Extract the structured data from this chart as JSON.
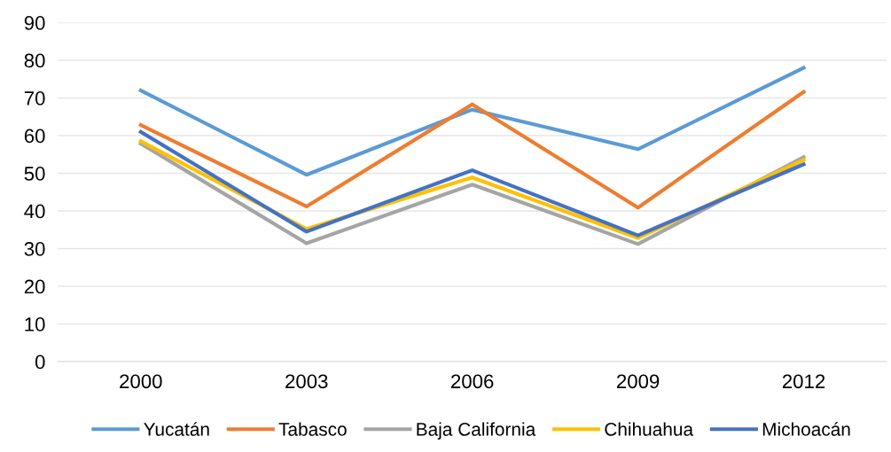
{
  "chart_data": {
    "type": "line",
    "categories": [
      "2000",
      "2003",
      "2006",
      "2009",
      "2012"
    ],
    "ylim": [
      0,
      90
    ],
    "yticks": [
      0,
      10,
      20,
      30,
      40,
      50,
      60,
      70,
      80,
      90
    ],
    "grid": "y",
    "legend": "bottom",
    "marker": "none",
    "line_style": "solid",
    "series": [
      {
        "name": "Yucatán",
        "color": "#5b9bd5",
        "values": [
          72,
          49.6,
          66.9,
          56.4,
          78
        ]
      },
      {
        "name": "Tabasco",
        "color": "#ed7d31",
        "values": [
          62.8,
          41.2,
          68.3,
          40.9,
          71.6
        ]
      },
      {
        "name": "Baja California",
        "color": "#a5a5a5",
        "values": [
          57.9,
          31.4,
          47,
          31.2,
          54.3
        ]
      },
      {
        "name": "Chihuahua",
        "color": "#ffc000",
        "values": [
          58.5,
          35.2,
          48.9,
          32.8,
          53.6
        ]
      },
      {
        "name": "Michoacán",
        "color": "#4472c4",
        "values": [
          61,
          34.5,
          50.8,
          33.5,
          52.4
        ]
      }
    ]
  }
}
